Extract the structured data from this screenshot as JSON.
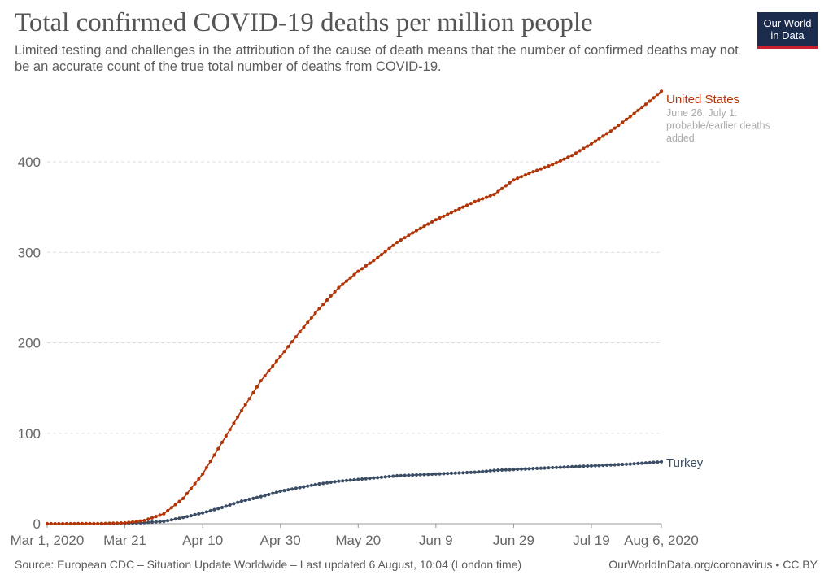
{
  "header": {
    "title": "Total confirmed COVID-19 deaths per million people",
    "subtitle": "Limited testing and challenges in the attribution of the cause of death means that the number of confirmed deaths may not be an accurate count of the true total number of deaths from COVID-19.",
    "logo_line1": "Our World",
    "logo_line2": "in Data"
  },
  "footer": {
    "source": "Source: European CDC – Situation Update Worldwide – Last updated 6 August, 10:04 (London time)",
    "credit": "OurWorldInData.org/coronavirus • CC BY"
  },
  "colors": {
    "united_states": "#b13507",
    "turkey": "#3c4e66",
    "grid": "#dddddd",
    "logo_bg": "#1a2b4c",
    "logo_accent": "#c8202e"
  },
  "chart_data": {
    "type": "line",
    "title": "Total confirmed COVID-19 deaths per million people",
    "x_ticks": [
      "Mar 1, 2020",
      "Mar 21",
      "Apr 10",
      "Apr 30",
      "May 20",
      "Jun 9",
      "Jun 29",
      "Jul 19",
      "Aug 6, 2020"
    ],
    "y_ticks": [
      "0",
      "100",
      "200",
      "300",
      "400"
    ],
    "ylim": [
      0,
      480
    ],
    "xlim": [
      "2020-03-01",
      "2020-08-06"
    ],
    "grid": "horizontal dashed",
    "x_unit": "date",
    "series": [
      {
        "name": "United States",
        "annotation": "June 26, July 1: probable/earlier deaths added",
        "points": [
          [
            "2020-03-01",
            0
          ],
          [
            "2020-03-06",
            0
          ],
          [
            "2020-03-11",
            0.1
          ],
          [
            "2020-03-16",
            0.3
          ],
          [
            "2020-03-21",
            0.9
          ],
          [
            "2020-03-26",
            3.5
          ],
          [
            "2020-03-31",
            11
          ],
          [
            "2020-04-05",
            28
          ],
          [
            "2020-04-10",
            55
          ],
          [
            "2020-04-15",
            90
          ],
          [
            "2020-04-20",
            125
          ],
          [
            "2020-04-25",
            158
          ],
          [
            "2020-04-30",
            185
          ],
          [
            "2020-05-05",
            212
          ],
          [
            "2020-05-10",
            238
          ],
          [
            "2020-05-15",
            261
          ],
          [
            "2020-05-20",
            279
          ],
          [
            "2020-05-25",
            294
          ],
          [
            "2020-05-30",
            311
          ],
          [
            "2020-06-04",
            324
          ],
          [
            "2020-06-09",
            336
          ],
          [
            "2020-06-14",
            346
          ],
          [
            "2020-06-19",
            356
          ],
          [
            "2020-06-24",
            364
          ],
          [
            "2020-06-29",
            380
          ],
          [
            "2020-07-04",
            389
          ],
          [
            "2020-07-09",
            397
          ],
          [
            "2020-07-14",
            407
          ],
          [
            "2020-07-19",
            420
          ],
          [
            "2020-07-24",
            434
          ],
          [
            "2020-07-29",
            450
          ],
          [
            "2020-08-03",
            467
          ],
          [
            "2020-08-06",
            478
          ]
        ]
      },
      {
        "name": "Turkey",
        "points": [
          [
            "2020-03-15",
            0
          ],
          [
            "2020-03-21",
            0.3
          ],
          [
            "2020-03-26",
            1.2
          ],
          [
            "2020-03-31",
            2.6
          ],
          [
            "2020-04-05",
            6.9
          ],
          [
            "2020-04-10",
            12
          ],
          [
            "2020-04-15",
            18
          ],
          [
            "2020-04-20",
            25
          ],
          [
            "2020-04-25",
            30
          ],
          [
            "2020-04-30",
            36
          ],
          [
            "2020-05-05",
            40
          ],
          [
            "2020-05-10",
            44
          ],
          [
            "2020-05-15",
            47
          ],
          [
            "2020-05-20",
            49
          ],
          [
            "2020-05-25",
            51
          ],
          [
            "2020-05-30",
            53
          ],
          [
            "2020-06-04",
            54
          ],
          [
            "2020-06-09",
            55
          ],
          [
            "2020-06-14",
            56
          ],
          [
            "2020-06-19",
            57
          ],
          [
            "2020-06-24",
            59
          ],
          [
            "2020-06-29",
            60
          ],
          [
            "2020-07-04",
            61
          ],
          [
            "2020-07-09",
            62
          ],
          [
            "2020-07-14",
            63
          ],
          [
            "2020-07-19",
            64
          ],
          [
            "2020-07-24",
            65
          ],
          [
            "2020-07-29",
            66
          ],
          [
            "2020-08-03",
            67.5
          ],
          [
            "2020-08-06",
            68.5
          ]
        ]
      }
    ]
  }
}
